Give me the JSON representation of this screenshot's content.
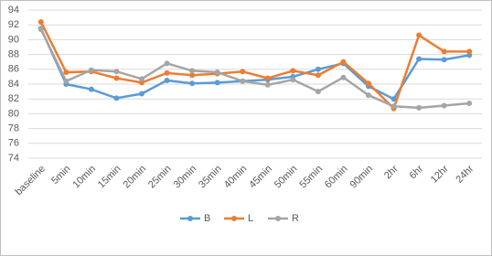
{
  "chart_data": {
    "type": "line",
    "categories": [
      "baseline",
      "5min",
      "10min",
      "15min",
      "20min",
      "25min",
      "30min",
      "35min",
      "40min",
      "45min",
      "50min",
      "55min",
      "60min",
      "90min",
      "2hr",
      "6hr",
      "12hr",
      "24hr"
    ],
    "series": [
      {
        "name": "B",
        "color": "#5b9bd5",
        "values": [
          91.5,
          84.0,
          83.3,
          82.1,
          82.7,
          84.5,
          84.1,
          84.2,
          84.4,
          84.6,
          85.0,
          86.0,
          86.8,
          83.7,
          82.0,
          87.4,
          87.3,
          87.9
        ]
      },
      {
        "name": "L",
        "color": "#ed7d31",
        "values": [
          92.4,
          85.6,
          85.7,
          84.8,
          84.2,
          85.5,
          85.2,
          85.4,
          85.7,
          84.8,
          85.8,
          85.2,
          87.0,
          84.1,
          80.7,
          90.6,
          88.4,
          88.4
        ]
      },
      {
        "name": "R",
        "color": "#a5a5a5",
        "values": [
          91.4,
          84.4,
          85.9,
          85.7,
          84.7,
          86.8,
          85.8,
          85.6,
          84.4,
          83.9,
          84.6,
          83.0,
          84.9,
          82.5,
          81.0,
          80.8,
          81.1,
          81.4
        ]
      }
    ],
    "ylim": [
      74,
      94
    ],
    "yticks": [
      74,
      76,
      78,
      80,
      82,
      84,
      86,
      88,
      90,
      92,
      94
    ],
    "grid": true,
    "legend": "bottom"
  }
}
